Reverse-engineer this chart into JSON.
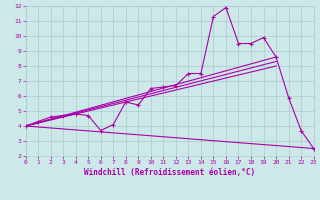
{
  "background_color": "#cce8e8",
  "grid_color": "#aacccc",
  "line_color": "#aa00aa",
  "xlabel": "Windchill (Refroidissement éolien,°C)",
  "ylim": [
    2,
    12
  ],
  "xlim": [
    0,
    23
  ],
  "yticks": [
    2,
    3,
    4,
    5,
    6,
    7,
    8,
    9,
    10,
    11,
    12
  ],
  "xticks": [
    0,
    1,
    2,
    3,
    4,
    5,
    6,
    7,
    8,
    9,
    10,
    11,
    12,
    13,
    14,
    15,
    16,
    17,
    18,
    19,
    20,
    21,
    22,
    23
  ],
  "jagged": {
    "x": [
      0,
      1,
      2,
      3,
      4,
      5,
      6,
      7,
      8,
      9,
      10,
      11,
      12,
      13,
      14,
      15,
      16,
      17,
      18,
      19,
      20,
      21,
      22,
      23
    ],
    "y": [
      4.0,
      4.3,
      4.6,
      4.7,
      4.8,
      4.7,
      3.7,
      4.1,
      5.6,
      5.4,
      6.5,
      6.6,
      6.7,
      7.5,
      7.5,
      11.3,
      11.9,
      9.5,
      9.5,
      9.9,
      8.6,
      5.9,
      3.7,
      2.5
    ]
  },
  "regression_lines": [
    {
      "x": [
        0,
        20
      ],
      "y": [
        4.0,
        8.6
      ]
    },
    {
      "x": [
        0,
        20
      ],
      "y": [
        4.0,
        8.3
      ]
    },
    {
      "x": [
        0,
        20
      ],
      "y": [
        4.0,
        8.0
      ]
    }
  ],
  "decline_line": {
    "x": [
      0,
      23
    ],
    "y": [
      4.0,
      2.5
    ]
  },
  "figsize": [
    3.2,
    2.0
  ],
  "dpi": 100
}
